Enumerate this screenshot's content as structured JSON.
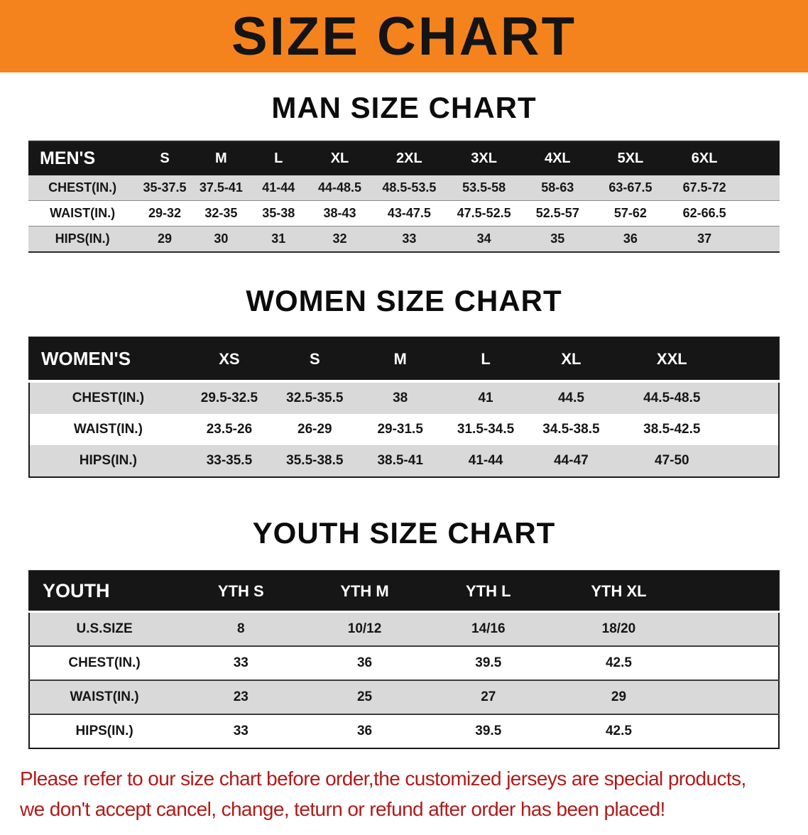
{
  "banner": {
    "title": "SIZE CHART"
  },
  "colors": {
    "banner_bg": "#F5831D",
    "banner_text": "#141414",
    "table_header_bg": "#161616",
    "table_header_text": "#FFFFFF",
    "row_stripe_gray": "#D9D9D9",
    "row_stripe_white": "#FFFFFF",
    "disclaimer_text": "#B11A1A"
  },
  "sections": [
    {
      "id": "men",
      "heading": "MAN SIZE CHART",
      "table": {
        "header": [
          "MEN'S",
          "S",
          "M",
          "L",
          "XL",
          "2XL",
          "3XL",
          "4XL",
          "5XL",
          "6XL"
        ],
        "rows": [
          [
            "CHEST(IN.)",
            "35-37.5",
            "37.5-41",
            "41-44",
            "44-48.5",
            "48.5-53.5",
            "53.5-58",
            "58-63",
            "63-67.5",
            "67.5-72"
          ],
          [
            "WAIST(IN.)",
            "29-32",
            "32-35",
            "35-38",
            "38-43",
            "43-47.5",
            "47.5-52.5",
            "52.5-57",
            "57-62",
            "62-66.5"
          ],
          [
            "HIPS(IN.)",
            "29",
            "30",
            "31",
            "32",
            "33",
            "34",
            "35",
            "36",
            "37"
          ]
        ]
      }
    },
    {
      "id": "women",
      "heading": "WOMEN SIZE CHART",
      "table": {
        "header": [
          "WOMEN'S",
          "XS",
          "S",
          "M",
          "L",
          "XL",
          "XXL"
        ],
        "rows": [
          [
            "CHEST(IN.)",
            "29.5-32.5",
            "32.5-35.5",
            "38",
            "41",
            "44.5",
            "44.5-48.5"
          ],
          [
            "WAIST(IN.)",
            "23.5-26",
            "26-29",
            "29-31.5",
            "31.5-34.5",
            "34.5-38.5",
            "38.5-42.5"
          ],
          [
            "HIPS(IN.)",
            "33-35.5",
            "35.5-38.5",
            "38.5-41",
            "41-44",
            "44-47",
            "47-50"
          ]
        ]
      }
    },
    {
      "id": "youth",
      "heading": "YOUTH SIZE CHART",
      "table": {
        "header": [
          "YOUTH",
          "YTH S",
          "YTH M",
          "YTH L",
          "YTH XL"
        ],
        "rows": [
          [
            "U.S.SIZE",
            "8",
            "10/12",
            "14/16",
            "18/20"
          ],
          [
            "CHEST(IN.)",
            "33",
            "36",
            "39.5",
            "42.5"
          ],
          [
            "WAIST(IN.)",
            "23",
            "25",
            "27",
            "29"
          ],
          [
            "HIPS(IN.)",
            "33",
            "36",
            "39.5",
            "42.5"
          ]
        ]
      }
    }
  ],
  "disclaimer": {
    "lines": [
      "Please refer to our size chart before order,the customized jerseys are special products,",
      "we don't accept cancel, change, teturn or refund after order has been placed!"
    ]
  }
}
